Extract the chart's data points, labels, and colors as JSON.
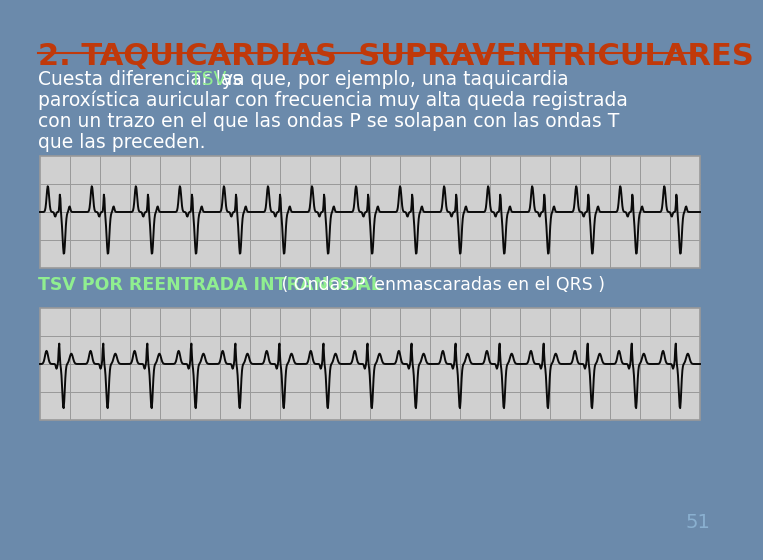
{
  "title": "2. TAQUICARDIAS  SUPRAVENTRICULARES",
  "title_color": "#c0390a",
  "title_fontsize": 22,
  "bg_color": "#6b8aab",
  "body_text_color": "#ffffff",
  "tsv_color": "#90ee90",
  "body_fontsize": 13.5,
  "ecg_label_bold": "TSV POR REENTRADA INTRANODAL",
  "ecg_label_rest": " ( Ondas P´enmascaradas en el QRS )",
  "ecg_label_color": "#ffffff",
  "ecg_label_bold_color": "#90ee90",
  "ecg_label_fontsize": 12.5,
  "grid_color": "#999999",
  "ecg_bg": "#d0d0d0",
  "ecg_line_color": "#0a0a0a",
  "page_number": "51",
  "page_number_color": "#8ab0d0",
  "page_number_fontsize": 14
}
